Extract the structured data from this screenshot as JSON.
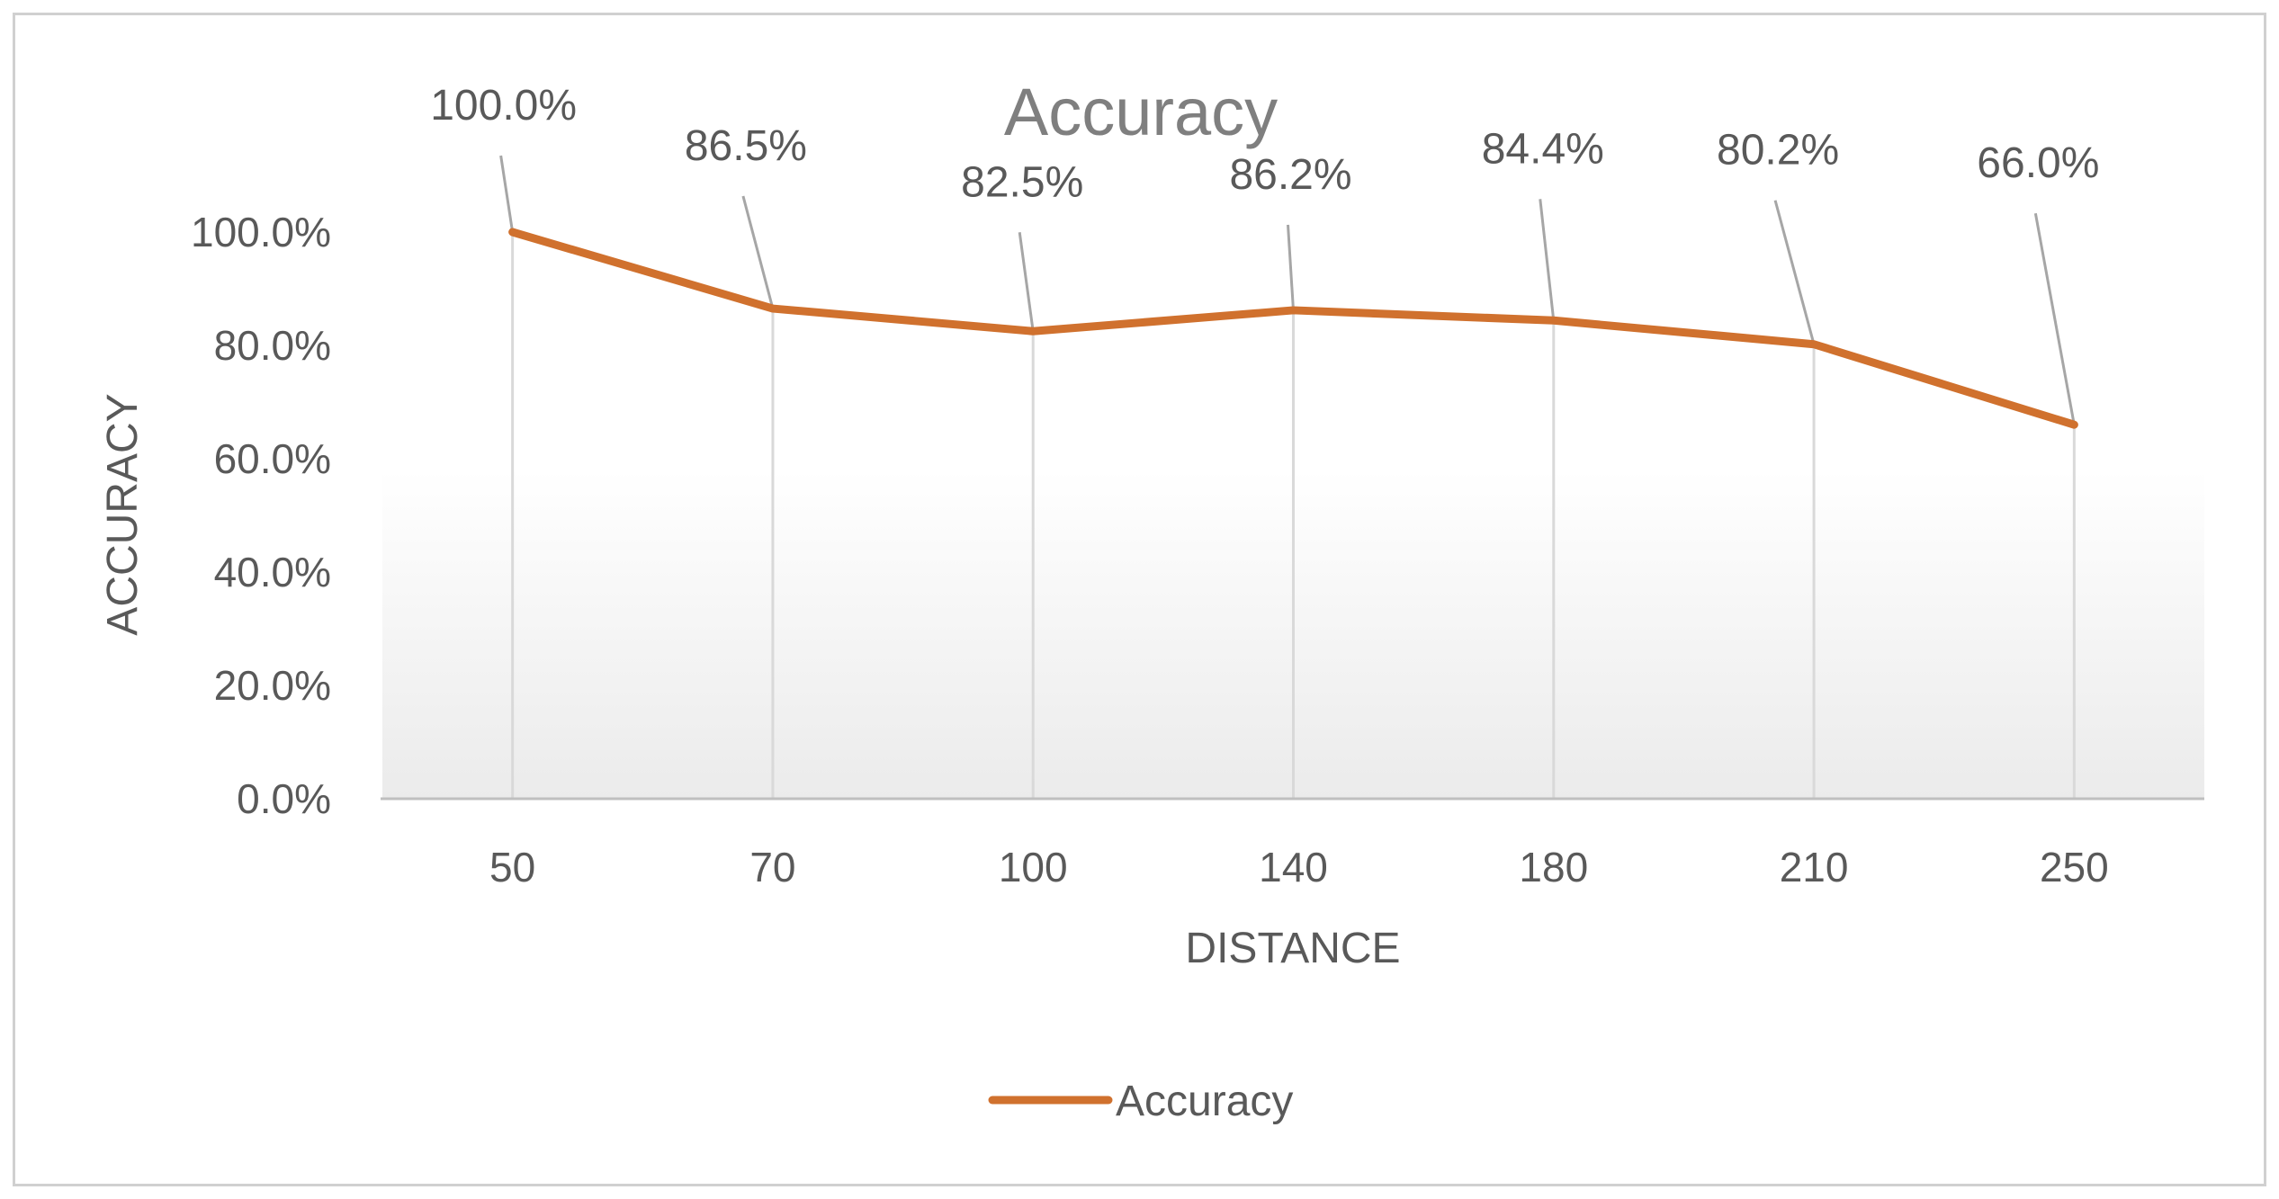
{
  "chart_data": {
    "type": "line",
    "title": "Accuracy",
    "xlabel": "DISTANCE",
    "ylabel": "ACCURACY",
    "categories": [
      "50",
      "70",
      "100",
      "140",
      "180",
      "210",
      "250"
    ],
    "series": [
      {
        "name": "Accuracy",
        "values": [
          100.0,
          86.5,
          82.5,
          86.2,
          84.4,
          80.2,
          66.0
        ],
        "data_labels": [
          "100.0%",
          "86.5%",
          "82.5%",
          "86.2%",
          "84.4%",
          "80.2%",
          "66.0%"
        ],
        "color": "#d0712e"
      }
    ],
    "ylim": [
      0,
      100
    ],
    "yticks": [
      0,
      20,
      40,
      60,
      80,
      100
    ],
    "ytick_labels": [
      "0.0%",
      "20.0%",
      "40.0%",
      "60.0%",
      "80.0%",
      "100.0%"
    ],
    "grid": "vertical lines at categories",
    "legend": "bottom"
  },
  "colors": {
    "series_line": "#d0712e",
    "text": "#595959",
    "title": "#7f7f7f",
    "grid": "#d9d9d9",
    "border": "#d0d0d0"
  }
}
